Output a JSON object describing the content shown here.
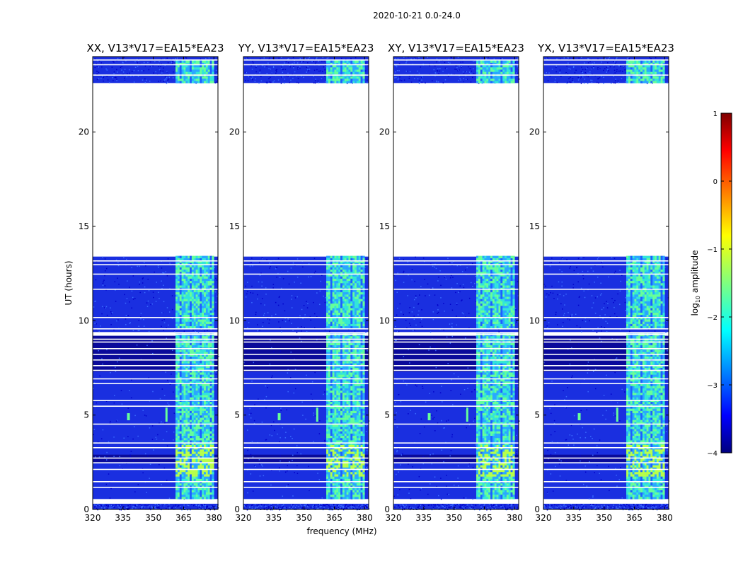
{
  "chart_data": {
    "type": "heatmap",
    "suptitle": "2020-10-21 0.0-24.0",
    "xlabel": "frequency (MHz)",
    "ylabel": "UT (hours)",
    "xlim": [
      320,
      382
    ],
    "ylim": [
      0,
      24
    ],
    "xticks": [
      "320",
      "335",
      "350",
      "365",
      "380"
    ],
    "yticks": [
      "0",
      "5",
      "10",
      "15",
      "20"
    ],
    "panels": [
      {
        "title": "XX, V13*V17=EA15*EA23"
      },
      {
        "title": "YY, V13*V17=EA15*EA23"
      },
      {
        "title": "XY, V13*V17=EA15*EA23"
      },
      {
        "title": "YX, V13*V17=EA15*EA23"
      }
    ],
    "data_blocks_hours": [
      [
        0,
        0.3
      ],
      [
        0.55,
        9.2
      ],
      [
        9.4,
        13.4
      ],
      [
        22.6,
        24
      ]
    ],
    "bright_band_mhz": [
      361,
      380
    ],
    "colorbar": {
      "label": "log10 amplitude",
      "label_main": "log",
      "label_sub": "10",
      "label_rest": " amplitude",
      "range": [
        -4,
        1
      ],
      "ticks": [
        "1",
        "0",
        "−1",
        "−2",
        "−3",
        "−4"
      ],
      "colors": [
        "#00007f",
        "#0000ff",
        "#007fff",
        "#00ffff",
        "#7fff7f",
        "#ffff00",
        "#ff7f00",
        "#ff0000",
        "#7f0000"
      ]
    }
  }
}
